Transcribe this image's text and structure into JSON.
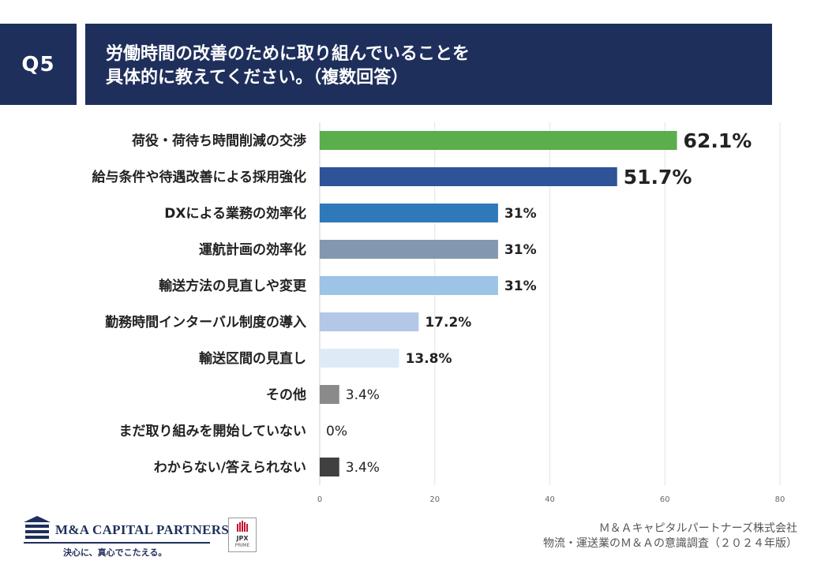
{
  "header": {
    "badge": "Q5",
    "title_line1": "労働時間の改善のために取り組んでいることを",
    "title_line2": "具体的に教えてください。（複数回答）"
  },
  "chart_data": {
    "type": "bar",
    "orientation": "horizontal",
    "categories": [
      "荷役・荷待ち時間削減の交渉",
      "給与条件や待遇改善による採用強化",
      "DXによる業務の効率化",
      "運航計画の効率化",
      "輸送方法の見直しや変更",
      "勤務時間インターバル制度の導入",
      "輸送区間の見直し",
      "その他",
      "まだ取り組みを開始していない",
      "わからない/答えられない"
    ],
    "values": [
      62.1,
      51.7,
      31,
      31,
      31,
      17.2,
      13.8,
      3.4,
      0,
      3.4
    ],
    "value_labels": [
      "62.1%",
      "51.7%",
      "31%",
      "31%",
      "31%",
      "17.2%",
      "13.8%",
      "3.4%",
      "0%",
      "3.4%"
    ],
    "colors": [
      "#5aae4b",
      "#2e5396",
      "#2f79ba",
      "#8497b0",
      "#9dc3e6",
      "#b4c7e7",
      "#deebf7",
      "#8a8a8a",
      "#8a8a8a",
      "#404040"
    ],
    "xlim": [
      0,
      80
    ],
    "xticks": [
      "0",
      "20",
      "40",
      "60",
      "80"
    ],
    "grid": true,
    "unit": "%"
  },
  "footer": {
    "company_logo_text": "M&A CAPITAL PARTNERS",
    "company_tagline": "決心に、真心でこたえる。",
    "jpx_line1": "JPX",
    "jpx_line2": "PRIME",
    "source_line1": "Ｍ＆Ａキャピタルパートナーズ株式会社",
    "source_line2": "物流・運送業のＭ＆Ａの意識調査（２０２４年版）"
  }
}
